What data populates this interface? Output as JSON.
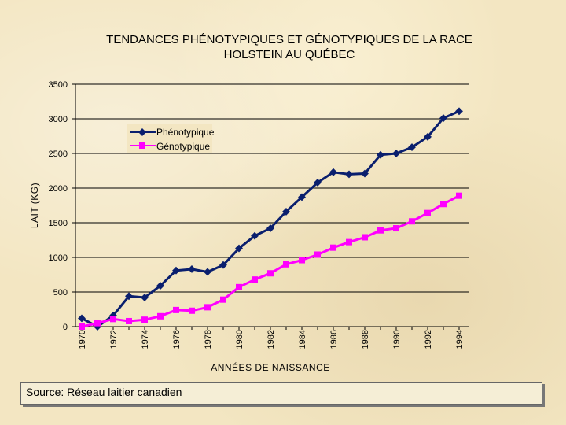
{
  "chart_data": {
    "type": "line",
    "title_line1": "TENDANCES PHÉNOTYPIQUES ET GÉNOTYPIQUES DE LA RACE",
    "title_line2": "HOLSTEIN AU QUÉBEC",
    "xlabel": "ANNÉES DE NAISSANCE",
    "ylabel": "LAIT (KG)",
    "ylim": [
      0,
      3500
    ],
    "yticks": [
      0,
      500,
      1000,
      1500,
      2000,
      2500,
      3000,
      3500
    ],
    "x": [
      1970,
      1971,
      1972,
      1973,
      1974,
      1975,
      1976,
      1977,
      1978,
      1979,
      1980,
      1981,
      1982,
      1983,
      1984,
      1985,
      1986,
      1987,
      1988,
      1989,
      1990,
      1991,
      1992,
      1993,
      1994
    ],
    "xtick_labels": [
      "1970",
      "1972",
      "1974",
      "1976",
      "1978",
      "1980",
      "1982",
      "1984",
      "1986",
      "1988",
      "1990",
      "1992",
      "1994"
    ],
    "grid": "horizontal",
    "legend_position": "top-left",
    "series": [
      {
        "name": "Phénotypique",
        "color": "#0a1f6e",
        "marker": "diamond",
        "values": [
          120,
          0,
          160,
          440,
          420,
          590,
          810,
          830,
          790,
          890,
          1130,
          1310,
          1420,
          1660,
          1870,
          2080,
          2230,
          2200,
          2210,
          2480,
          2500,
          2590,
          2740,
          3010,
          3110
        ]
      },
      {
        "name": "Génotypique",
        "color": "#ff00ff",
        "marker": "square",
        "values": [
          0,
          50,
          110,
          80,
          100,
          150,
          240,
          230,
          280,
          390,
          570,
          680,
          770,
          900,
          960,
          1040,
          1140,
          1220,
          1290,
          1390,
          1420,
          1520,
          1640,
          1770,
          1890
        ]
      }
    ]
  },
  "footer": {
    "source": "Source:  Réseau laitier canadien"
  }
}
